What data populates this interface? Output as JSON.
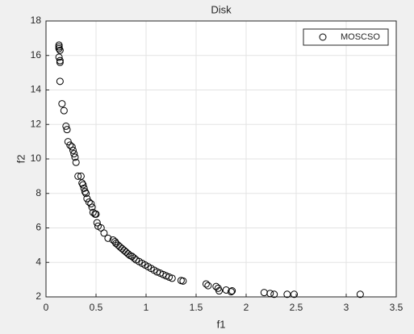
{
  "chart_data": {
    "type": "scatter",
    "title": "Disk",
    "xlabel": "f1",
    "ylabel": "f2",
    "xlim": [
      0,
      3.5
    ],
    "xticks": [
      0,
      0.5,
      1,
      1.5,
      2,
      2.5,
      3,
      3.5
    ],
    "ylim": [
      2,
      18
    ],
    "yticks": [
      2,
      4,
      6,
      8,
      10,
      12,
      14,
      16,
      18
    ],
    "grid": true,
    "legend": "upper-right",
    "series": [
      {
        "name": "MOSCSO",
        "color": "#000000",
        "x": [
          0.13,
          0.13,
          0.13,
          0.14,
          0.13,
          0.14,
          0.14,
          0.14,
          0.16,
          0.18,
          0.2,
          0.21,
          0.22,
          0.24,
          0.26,
          0.27,
          0.28,
          0.29,
          0.3,
          0.32,
          0.35,
          0.36,
          0.37,
          0.38,
          0.39,
          0.4,
          0.41,
          0.43,
          0.45,
          0.46,
          0.47,
          0.49,
          0.5,
          0.51,
          0.52,
          0.55,
          0.58,
          0.62,
          0.67,
          0.69,
          0.7,
          0.72,
          0.74,
          0.76,
          0.78,
          0.8,
          0.82,
          0.84,
          0.86,
          0.88,
          0.9,
          0.93,
          0.96,
          0.99,
          1.02,
          1.05,
          1.08,
          1.11,
          1.14,
          1.17,
          1.2,
          1.23,
          1.26,
          1.35,
          1.37,
          1.6,
          1.62,
          1.7,
          1.72,
          1.73,
          1.8,
          1.85,
          1.86,
          2.18,
          2.24,
          2.28,
          2.41,
          2.48,
          3.14
        ],
        "y": [
          16.6,
          16.5,
          16.4,
          16.3,
          15.9,
          15.7,
          15.6,
          14.5,
          13.2,
          12.8,
          11.9,
          11.7,
          11.0,
          10.8,
          10.7,
          10.5,
          10.3,
          10.1,
          9.8,
          9.0,
          9.0,
          8.6,
          8.5,
          8.3,
          8.1,
          8.0,
          7.7,
          7.5,
          7.4,
          7.2,
          6.9,
          6.8,
          6.8,
          6.3,
          6.1,
          6.0,
          5.7,
          5.4,
          5.3,
          5.2,
          5.1,
          5.0,
          4.9,
          4.8,
          4.7,
          4.6,
          4.5,
          4.4,
          4.35,
          4.25,
          4.15,
          4.05,
          3.95,
          3.85,
          3.75,
          3.65,
          3.55,
          3.45,
          3.38,
          3.3,
          3.22,
          3.15,
          3.08,
          2.95,
          2.92,
          2.75,
          2.65,
          2.6,
          2.5,
          2.35,
          2.4,
          2.3,
          2.35,
          2.25,
          2.2,
          2.15,
          2.15,
          2.15,
          2.15
        ]
      }
    ]
  }
}
